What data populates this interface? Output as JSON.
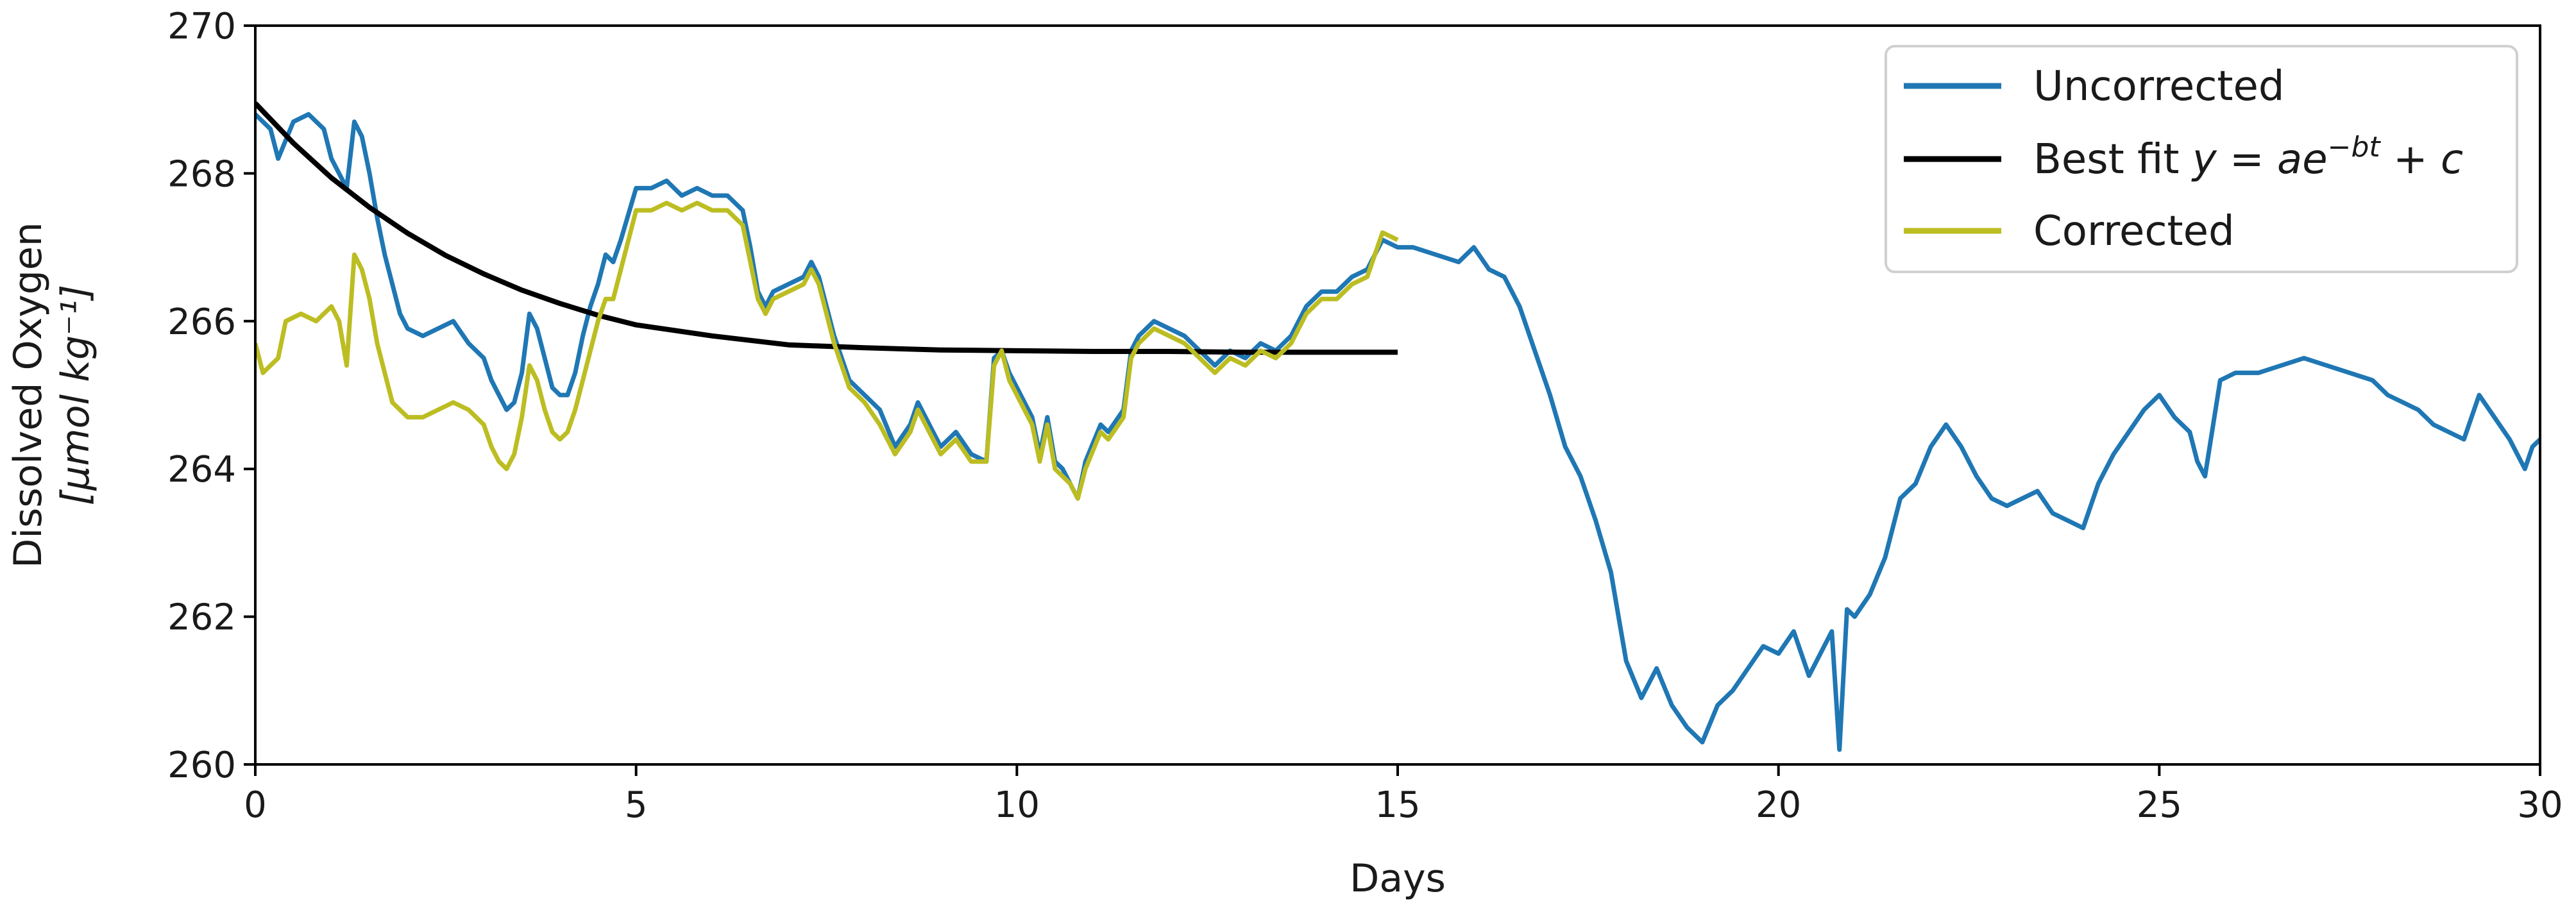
{
  "chart_data": {
    "type": "line",
    "xlabel": "Days",
    "ylabel_line1": "Dissolved Oxygen",
    "ylabel_line2": "[μmol kg⁻¹]",
    "xlim": [
      0,
      30
    ],
    "ylim": [
      260,
      270
    ],
    "xticks": [
      0,
      5,
      10,
      15,
      20,
      25,
      30
    ],
    "yticks": [
      260,
      262,
      264,
      266,
      268,
      270
    ],
    "grid": false,
    "legend_position": "top-right",
    "series": [
      {
        "name": "Uncorrected",
        "color": "#1f77b4",
        "points": [
          [
            0,
            268.8
          ],
          [
            0.2,
            268.6
          ],
          [
            0.3,
            268.2
          ],
          [
            0.5,
            268.7
          ],
          [
            0.7,
            268.8
          ],
          [
            0.9,
            268.6
          ],
          [
            1.0,
            268.2
          ],
          [
            1.1,
            268.0
          ],
          [
            1.2,
            267.8
          ],
          [
            1.3,
            268.7
          ],
          [
            1.4,
            268.5
          ],
          [
            1.5,
            268.0
          ],
          [
            1.6,
            267.4
          ],
          [
            1.7,
            266.9
          ],
          [
            1.8,
            266.5
          ],
          [
            1.9,
            266.1
          ],
          [
            2.0,
            265.9
          ],
          [
            2.2,
            265.8
          ],
          [
            2.4,
            265.9
          ],
          [
            2.6,
            266.0
          ],
          [
            2.8,
            265.7
          ],
          [
            3.0,
            265.5
          ],
          [
            3.1,
            265.2
          ],
          [
            3.2,
            265.0
          ],
          [
            3.3,
            264.8
          ],
          [
            3.4,
            264.9
          ],
          [
            3.5,
            265.3
          ],
          [
            3.6,
            266.1
          ],
          [
            3.7,
            265.9
          ],
          [
            3.8,
            265.5
          ],
          [
            3.9,
            265.1
          ],
          [
            4.0,
            265.0
          ],
          [
            4.1,
            265.0
          ],
          [
            4.2,
            265.3
          ],
          [
            4.3,
            265.8
          ],
          [
            4.4,
            266.2
          ],
          [
            4.5,
            266.5
          ],
          [
            4.6,
            266.9
          ],
          [
            4.7,
            266.8
          ],
          [
            4.8,
            267.1
          ],
          [
            5.0,
            267.8
          ],
          [
            5.2,
            267.8
          ],
          [
            5.4,
            267.9
          ],
          [
            5.6,
            267.7
          ],
          [
            5.8,
            267.8
          ],
          [
            6.0,
            267.7
          ],
          [
            6.2,
            267.7
          ],
          [
            6.4,
            267.5
          ],
          [
            6.5,
            267.0
          ],
          [
            6.6,
            266.4
          ],
          [
            6.7,
            266.2
          ],
          [
            6.8,
            266.4
          ],
          [
            7.0,
            266.5
          ],
          [
            7.2,
            266.6
          ],
          [
            7.3,
            266.8
          ],
          [
            7.4,
            266.6
          ],
          [
            7.5,
            266.2
          ],
          [
            7.6,
            265.8
          ],
          [
            7.8,
            265.2
          ],
          [
            8.0,
            265.0
          ],
          [
            8.2,
            264.8
          ],
          [
            8.4,
            264.3
          ],
          [
            8.6,
            264.6
          ],
          [
            8.7,
            264.9
          ],
          [
            8.9,
            264.5
          ],
          [
            9.0,
            264.3
          ],
          [
            9.2,
            264.5
          ],
          [
            9.4,
            264.2
          ],
          [
            9.6,
            264.1
          ],
          [
            9.7,
            265.5
          ],
          [
            9.8,
            265.6
          ],
          [
            9.9,
            265.3
          ],
          [
            10.1,
            264.9
          ],
          [
            10.2,
            264.7
          ],
          [
            10.3,
            264.2
          ],
          [
            10.4,
            264.7
          ],
          [
            10.5,
            264.1
          ],
          [
            10.6,
            264.0
          ],
          [
            10.7,
            263.8
          ],
          [
            10.8,
            263.6
          ],
          [
            10.9,
            264.1
          ],
          [
            11.1,
            264.6
          ],
          [
            11.2,
            264.5
          ],
          [
            11.4,
            264.8
          ],
          [
            11.5,
            265.6
          ],
          [
            11.6,
            265.8
          ],
          [
            11.8,
            266.0
          ],
          [
            12.0,
            265.9
          ],
          [
            12.2,
            265.8
          ],
          [
            12.4,
            265.6
          ],
          [
            12.6,
            265.4
          ],
          [
            12.8,
            265.6
          ],
          [
            13.0,
            265.5
          ],
          [
            13.2,
            265.7
          ],
          [
            13.4,
            265.6
          ],
          [
            13.6,
            265.8
          ],
          [
            13.8,
            266.2
          ],
          [
            14.0,
            266.4
          ],
          [
            14.2,
            266.4
          ],
          [
            14.4,
            266.6
          ],
          [
            14.6,
            266.7
          ],
          [
            14.8,
            267.1
          ],
          [
            15.0,
            267.0
          ],
          [
            15.2,
            267.0
          ],
          [
            15.5,
            266.9
          ],
          [
            15.8,
            266.8
          ],
          [
            16.0,
            267.0
          ],
          [
            16.2,
            266.7
          ],
          [
            16.4,
            266.6
          ],
          [
            16.6,
            266.2
          ],
          [
            16.8,
            265.6
          ],
          [
            17.0,
            265.0
          ],
          [
            17.2,
            264.3
          ],
          [
            17.4,
            263.9
          ],
          [
            17.6,
            263.3
          ],
          [
            17.8,
            262.6
          ],
          [
            17.9,
            262.0
          ],
          [
            18.0,
            261.4
          ],
          [
            18.2,
            260.9
          ],
          [
            18.4,
            261.3
          ],
          [
            18.6,
            260.8
          ],
          [
            18.8,
            260.5
          ],
          [
            19.0,
            260.3
          ],
          [
            19.2,
            260.8
          ],
          [
            19.4,
            261.0
          ],
          [
            19.6,
            261.3
          ],
          [
            19.8,
            261.6
          ],
          [
            20.0,
            261.5
          ],
          [
            20.2,
            261.8
          ],
          [
            20.4,
            261.2
          ],
          [
            20.6,
            261.6
          ],
          [
            20.7,
            261.8
          ],
          [
            20.8,
            260.2
          ],
          [
            20.9,
            262.1
          ],
          [
            21.0,
            262.0
          ],
          [
            21.2,
            262.3
          ],
          [
            21.4,
            262.8
          ],
          [
            21.6,
            263.6
          ],
          [
            21.8,
            263.8
          ],
          [
            22.0,
            264.3
          ],
          [
            22.2,
            264.6
          ],
          [
            22.4,
            264.3
          ],
          [
            22.6,
            263.9
          ],
          [
            22.8,
            263.6
          ],
          [
            23.0,
            263.5
          ],
          [
            23.2,
            263.6
          ],
          [
            23.4,
            263.7
          ],
          [
            23.6,
            263.4
          ],
          [
            23.8,
            263.3
          ],
          [
            24.0,
            263.2
          ],
          [
            24.2,
            263.8
          ],
          [
            24.4,
            264.2
          ],
          [
            24.6,
            264.5
          ],
          [
            24.8,
            264.8
          ],
          [
            25.0,
            265.0
          ],
          [
            25.2,
            264.7
          ],
          [
            25.4,
            264.5
          ],
          [
            25.5,
            264.1
          ],
          [
            25.6,
            263.9
          ],
          [
            25.8,
            265.2
          ],
          [
            26.0,
            265.3
          ],
          [
            26.3,
            265.3
          ],
          [
            26.6,
            265.4
          ],
          [
            26.9,
            265.5
          ],
          [
            27.2,
            265.4
          ],
          [
            27.5,
            265.3
          ],
          [
            27.8,
            265.2
          ],
          [
            28.0,
            265.0
          ],
          [
            28.2,
            264.9
          ],
          [
            28.4,
            264.8
          ],
          [
            28.6,
            264.6
          ],
          [
            28.8,
            264.5
          ],
          [
            29.0,
            264.4
          ],
          [
            29.2,
            265.0
          ],
          [
            29.4,
            264.7
          ],
          [
            29.6,
            264.4
          ],
          [
            29.8,
            264.0
          ],
          [
            29.9,
            264.3
          ],
          [
            30.0,
            264.4
          ]
        ]
      },
      {
        "name": "Best fit y = ae^{-bt} + c",
        "color": "#000000",
        "points": [
          [
            0,
            268.95
          ],
          [
            0.5,
            268.41
          ],
          [
            1,
            267.94
          ],
          [
            1.5,
            267.54
          ],
          [
            2,
            267.19
          ],
          [
            2.5,
            266.89
          ],
          [
            3,
            266.64
          ],
          [
            3.5,
            266.42
          ],
          [
            4,
            266.24
          ],
          [
            4.5,
            266.08
          ],
          [
            5,
            265.95
          ],
          [
            6,
            265.8
          ],
          [
            7,
            265.68
          ],
          [
            8,
            265.64
          ],
          [
            9,
            265.61
          ],
          [
            10,
            265.6
          ],
          [
            11,
            265.59
          ],
          [
            12,
            265.59
          ],
          [
            13,
            265.58
          ],
          [
            14,
            265.58
          ],
          [
            15,
            265.58
          ]
        ]
      },
      {
        "name": "Corrected",
        "color": "#bcbd22",
        "points": [
          [
            0,
            265.7
          ],
          [
            0.1,
            265.3
          ],
          [
            0.3,
            265.5
          ],
          [
            0.4,
            266.0
          ],
          [
            0.6,
            266.1
          ],
          [
            0.8,
            266.0
          ],
          [
            1.0,
            266.2
          ],
          [
            1.1,
            266.0
          ],
          [
            1.2,
            265.4
          ],
          [
            1.3,
            266.9
          ],
          [
            1.4,
            266.7
          ],
          [
            1.5,
            266.3
          ],
          [
            1.6,
            265.7
          ],
          [
            1.7,
            265.3
          ],
          [
            1.8,
            264.9
          ],
          [
            2.0,
            264.7
          ],
          [
            2.2,
            264.7
          ],
          [
            2.4,
            264.8
          ],
          [
            2.6,
            264.9
          ],
          [
            2.8,
            264.8
          ],
          [
            3.0,
            264.6
          ],
          [
            3.1,
            264.3
          ],
          [
            3.2,
            264.1
          ],
          [
            3.3,
            264.0
          ],
          [
            3.4,
            264.2
          ],
          [
            3.5,
            264.7
          ],
          [
            3.6,
            265.4
          ],
          [
            3.7,
            265.2
          ],
          [
            3.8,
            264.8
          ],
          [
            3.9,
            264.5
          ],
          [
            4.0,
            264.4
          ],
          [
            4.1,
            264.5
          ],
          [
            4.2,
            264.8
          ],
          [
            4.3,
            265.2
          ],
          [
            4.4,
            265.6
          ],
          [
            4.5,
            266.0
          ],
          [
            4.6,
            266.3
          ],
          [
            4.7,
            266.3
          ],
          [
            4.8,
            266.7
          ],
          [
            5.0,
            267.5
          ],
          [
            5.2,
            267.5
          ],
          [
            5.4,
            267.6
          ],
          [
            5.6,
            267.5
          ],
          [
            5.8,
            267.6
          ],
          [
            6.0,
            267.5
          ],
          [
            6.2,
            267.5
          ],
          [
            6.4,
            267.3
          ],
          [
            6.5,
            266.8
          ],
          [
            6.6,
            266.3
          ],
          [
            6.7,
            266.1
          ],
          [
            6.8,
            266.3
          ],
          [
            7.0,
            266.4
          ],
          [
            7.2,
            266.5
          ],
          [
            7.3,
            266.7
          ],
          [
            7.4,
            266.5
          ],
          [
            7.5,
            266.1
          ],
          [
            7.6,
            265.7
          ],
          [
            7.8,
            265.1
          ],
          [
            8.0,
            264.9
          ],
          [
            8.2,
            264.6
          ],
          [
            8.4,
            264.2
          ],
          [
            8.6,
            264.5
          ],
          [
            8.7,
            264.8
          ],
          [
            8.9,
            264.4
          ],
          [
            9.0,
            264.2
          ],
          [
            9.2,
            264.4
          ],
          [
            9.4,
            264.1
          ],
          [
            9.6,
            264.1
          ],
          [
            9.7,
            265.4
          ],
          [
            9.8,
            265.6
          ],
          [
            9.9,
            265.2
          ],
          [
            10.1,
            264.8
          ],
          [
            10.2,
            264.6
          ],
          [
            10.3,
            264.1
          ],
          [
            10.4,
            264.6
          ],
          [
            10.5,
            264.0
          ],
          [
            10.6,
            263.9
          ],
          [
            10.7,
            263.8
          ],
          [
            10.8,
            263.6
          ],
          [
            10.9,
            264.0
          ],
          [
            11.1,
            264.5
          ],
          [
            11.2,
            264.4
          ],
          [
            11.4,
            264.7
          ],
          [
            11.5,
            265.5
          ],
          [
            11.6,
            265.7
          ],
          [
            11.8,
            265.9
          ],
          [
            12.0,
            265.8
          ],
          [
            12.2,
            265.7
          ],
          [
            12.4,
            265.5
          ],
          [
            12.6,
            265.3
          ],
          [
            12.8,
            265.5
          ],
          [
            13.0,
            265.4
          ],
          [
            13.2,
            265.6
          ],
          [
            13.4,
            265.5
          ],
          [
            13.6,
            265.7
          ],
          [
            13.8,
            266.1
          ],
          [
            14.0,
            266.3
          ],
          [
            14.2,
            266.3
          ],
          [
            14.4,
            266.5
          ],
          [
            14.6,
            266.6
          ],
          [
            14.8,
            267.2
          ],
          [
            15.0,
            267.1
          ]
        ]
      }
    ]
  }
}
